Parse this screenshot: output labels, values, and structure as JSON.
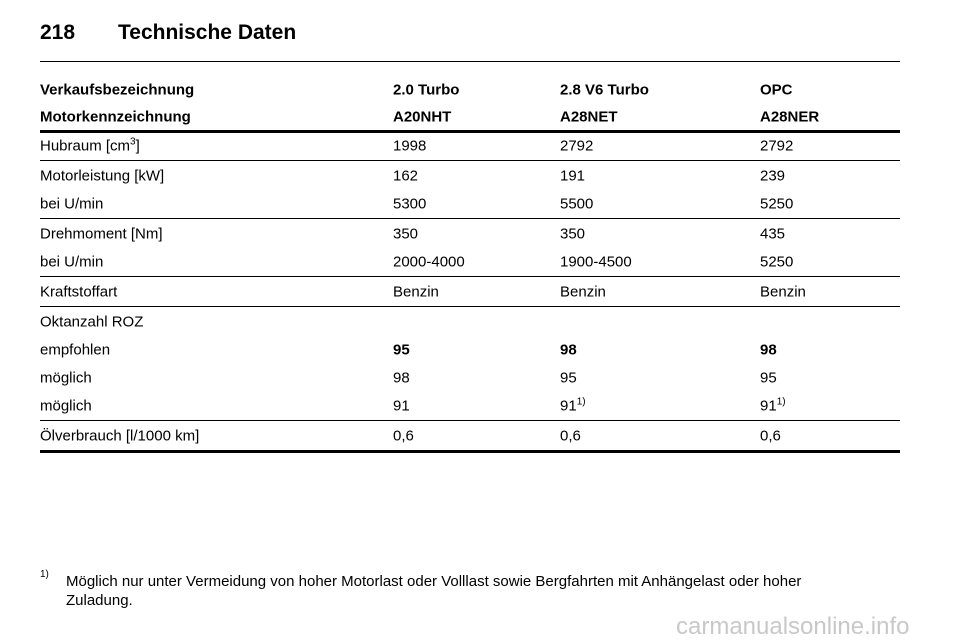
{
  "header": {
    "page_number": "218",
    "title": "Technische Daten"
  },
  "table": {
    "header_rows": [
      [
        "Verkaufsbezeichnung",
        "2.0 Turbo",
        "2.8 V6 Turbo",
        "OPC"
      ],
      [
        "Motorkennzeichnung",
        "A20NHT",
        "A28NET",
        "A28NER"
      ]
    ],
    "groups": [
      [
        {
          "cells": [
            {
              "text": "Hubraum [cm",
              "sup": "3",
              "after": "]"
            },
            "1998",
            "2792",
            "2792"
          ]
        }
      ],
      [
        {
          "cells": [
            "Motorleistung [kW]",
            "162",
            "191",
            "239"
          ]
        },
        {
          "cells": [
            "bei U/min",
            "5300",
            "5500",
            "5250"
          ]
        }
      ],
      [
        {
          "cells": [
            "Drehmoment [Nm]",
            "350",
            "350",
            "435"
          ]
        },
        {
          "cells": [
            "bei U/min",
            "2000-4000",
            "1900-4500",
            "5250"
          ]
        }
      ],
      [
        {
          "cells": [
            "Kraftstoffart",
            "Benzin",
            "Benzin",
            "Benzin"
          ]
        }
      ],
      [
        {
          "cells": [
            "Oktanzahl ROZ"
          ]
        },
        {
          "cells": [
            "empfohlen",
            "95",
            "98",
            "98"
          ],
          "bold_values": true
        },
        {
          "cells": [
            "möglich",
            "98",
            "95",
            "95"
          ]
        },
        {
          "cells": [
            "möglich",
            "91",
            {
              "text": "91",
              "sup": "1)"
            },
            {
              "text": "91",
              "sup": "1)"
            }
          ]
        }
      ],
      [
        {
          "cells": [
            "Ölverbrauch [l/1000 km]",
            "0,6",
            "0,6",
            "0,6"
          ]
        }
      ]
    ]
  },
  "footnote": {
    "mark": "1)",
    "text": "Möglich nur unter Vermeidung von hoher Motorlast oder Volllast sowie Bergfahrten mit Anhängelast oder hoher Zuladung."
  },
  "watermark": "carmanualsonline.info"
}
